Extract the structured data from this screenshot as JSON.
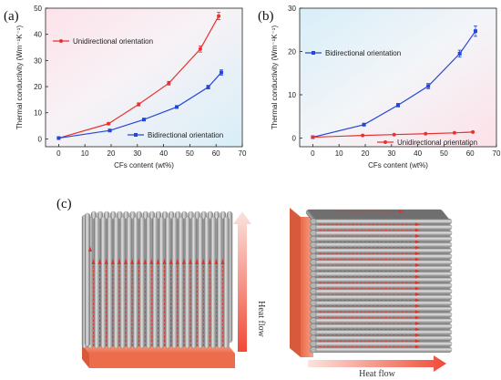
{
  "panel_labels": {
    "a": "(a)",
    "b": "(b)",
    "c": "(c)"
  },
  "colors": {
    "unidirectional": "#e8322f",
    "bidirectional": "#2348d8",
    "rod": "#a9a9a9",
    "heat_base": "#f2866a",
    "arrow_red": "#e0302b"
  },
  "chart_data": [
    {
      "type": "line",
      "panel": "(a)",
      "xlabel": "CFs content (wt%)",
      "ylabel": "Thermal conductivity (Wm⁻¹K⁻¹)",
      "xlim": [
        -5,
        70
      ],
      "ylim": [
        -3,
        50
      ],
      "xticks": [
        0,
        10,
        20,
        30,
        40,
        50,
        60,
        70
      ],
      "yticks": [
        0,
        10,
        20,
        30,
        40,
        50
      ],
      "legend_placement": [
        "top-left",
        "bottom-right"
      ],
      "series": [
        {
          "name": "Unidirectional orientation",
          "color": "#e8322f",
          "marker": "circle",
          "x": [
            0,
            19,
            30.5,
            42,
            54,
            61
          ],
          "y": [
            0.3,
            5.8,
            13.2,
            21.3,
            34.4,
            47.0
          ],
          "err": [
            0,
            0.4,
            0.6,
            0.7,
            1.2,
            1.4
          ]
        },
        {
          "name": "Bidirectional orientation",
          "color": "#2348d8",
          "marker": "square",
          "x": [
            0,
            19.5,
            32.5,
            45,
            57,
            62
          ],
          "y": [
            0.3,
            3.2,
            7.4,
            12.2,
            19.8,
            25.4
          ],
          "err": [
            0,
            0.3,
            0.4,
            0.4,
            0.7,
            1.0
          ]
        }
      ]
    },
    {
      "type": "line",
      "panel": "(b)",
      "xlabel": "CFs content (wt%)",
      "ylabel": "Thermal conductivity (Wm⁻¹K⁻¹)",
      "xlim": [
        -5,
        70
      ],
      "ylim": [
        -2,
        30
      ],
      "xticks": [
        0,
        10,
        20,
        30,
        40,
        50,
        60,
        70
      ],
      "yticks": [
        0,
        10,
        20,
        30
      ],
      "legend_placement": [
        "top-left",
        "bottom-right"
      ],
      "series": [
        {
          "name": "Bidirectional orientation",
          "color": "#2348d8",
          "marker": "square",
          "x": [
            0,
            19.5,
            32.5,
            44,
            56,
            62
          ],
          "y": [
            0.2,
            3.1,
            7.6,
            12.0,
            19.5,
            24.7
          ],
          "err": [
            0,
            0.3,
            0.4,
            0.6,
            0.8,
            1.2
          ]
        },
        {
          "name": "Unidirectional orientation",
          "color": "#e8322f",
          "marker": "circle",
          "x": [
            0,
            19,
            31,
            43,
            54,
            61
          ],
          "y": [
            0.2,
            0.6,
            0.8,
            1.0,
            1.2,
            1.4
          ],
          "err": [
            0,
            0,
            0,
            0,
            0,
            0
          ]
        }
      ]
    }
  ],
  "schematic": {
    "left_heat_label": "Heat flow",
    "right_heat_label": "Heat flow"
  }
}
